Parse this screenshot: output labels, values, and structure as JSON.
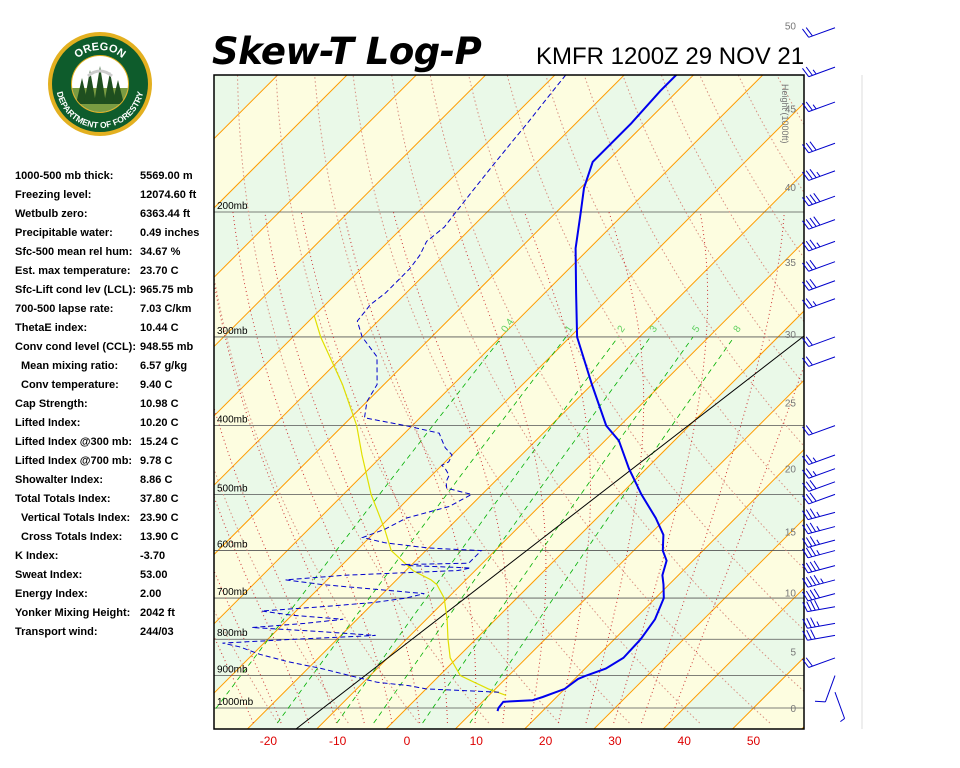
{
  "header": {
    "title": "Skew-T Log-P",
    "station_time": "KMFR 1200Z 29 NOV 21"
  },
  "logo": {
    "top_text": "OREGON",
    "bottom_text": "DEPARTMENT OF FORESTRY"
  },
  "indices": [
    {
      "label": "1000-500 mb thick:",
      "value": "5569.00 m"
    },
    {
      "label": "Freezing level:",
      "value": "12074.60 ft"
    },
    {
      "label": "Wetbulb zero:",
      "value": "6363.44 ft"
    },
    {
      "label": "Precipitable water:",
      "value": "0.49 inches"
    },
    {
      "label": "Sfc-500 mean rel hum:",
      "value": "34.67 %"
    },
    {
      "label": "Est. max temperature:",
      "value": "23.70 C"
    },
    {
      "label": "Sfc-Lift cond lev (LCL):",
      "value": "965.75 mb"
    },
    {
      "label": "700-500 lapse rate:",
      "value": "7.03 C/km"
    },
    {
      "label": "ThetaE index:",
      "value": "10.44 C"
    },
    {
      "label": "Conv cond level (CCL):",
      "value": "948.55 mb"
    },
    {
      "label": "Mean mixing ratio:",
      "value": "6.57 g/kg",
      "indent": true
    },
    {
      "label": "Conv temperature:",
      "value": "9.40 C",
      "indent": true
    },
    {
      "label": "Cap Strength:",
      "value": "10.98 C"
    },
    {
      "label": "Lifted Index:",
      "value": "10.20 C"
    },
    {
      "label": "Lifted Index @300 mb:",
      "value": "15.24 C"
    },
    {
      "label": "Lifted Index @700 mb:",
      "value": "9.78 C"
    },
    {
      "label": "Showalter Index:",
      "value": "8.86 C"
    },
    {
      "label": "Total Totals Index:",
      "value": "37.80 C"
    },
    {
      "label": "Vertical Totals Index:",
      "value": "23.90 C",
      "indent": true
    },
    {
      "label": "Cross Totals Index:",
      "value": "13.90 C",
      "indent": true
    },
    {
      "label": "K Index:",
      "value": "-3.70"
    },
    {
      "label": "Sweat Index:",
      "value": "53.00"
    },
    {
      "label": "Energy Index:",
      "value": "2.00"
    },
    {
      "label": "Yonker Mixing Height:",
      "value": "2042 ft"
    },
    {
      "label": "Transport wind:",
      "value": "244/03"
    }
  ],
  "chart_data": {
    "type": "skew-t",
    "title": "Skew-T Log-P",
    "subtitle": "KMFR 1200Z 29 NOV 21",
    "x_ticks": [
      -20,
      -10,
      0,
      10,
      20,
      30,
      40,
      50
    ],
    "x_range_c": [
      -29,
      56
    ],
    "pressure_levels": [
      {
        "p": 200,
        "label": "200mb"
      },
      {
        "p": 300,
        "label": "300mb"
      },
      {
        "p": 400,
        "label": "400mb"
      },
      {
        "p": 500,
        "label": "500mb"
      },
      {
        "p": 600,
        "label": "600mb"
      },
      {
        "p": 700,
        "label": "700mb"
      },
      {
        "p": 800,
        "label": "800mb"
      },
      {
        "p": 900,
        "label": "900mb"
      },
      {
        "p": 1000,
        "label": "1000mb"
      }
    ],
    "height_axis": {
      "label": "Height (1000ft)",
      "ticks": [
        0,
        5,
        10,
        15,
        20,
        25,
        30,
        35,
        40,
        45,
        50
      ]
    },
    "mixing_ratio_labels": [
      "0.4",
      "1",
      "2",
      "3",
      "5",
      "8"
    ],
    "temperature_profile": [
      [
        1010,
        13.5
      ],
      [
        1000,
        13.2
      ],
      [
        980,
        13.0
      ],
      [
        975,
        17.0
      ],
      [
        965,
        18.0
      ],
      [
        940,
        20.0
      ],
      [
        910,
        20.5
      ],
      [
        900,
        21.2
      ],
      [
        880,
        23.0
      ],
      [
        850,
        24.0
      ],
      [
        800,
        23.8
      ],
      [
        750,
        23.0
      ],
      [
        700,
        21.2
      ],
      [
        670,
        19.2
      ],
      [
        650,
        17.7
      ],
      [
        620,
        16.2
      ],
      [
        600,
        14.2
      ],
      [
        570,
        12.0
      ],
      [
        540,
        8.5
      ],
      [
        500,
        3.0
      ],
      [
        460,
        -2.5
      ],
      [
        420,
        -8.0
      ],
      [
        400,
        -12.0
      ],
      [
        350,
        -20.0
      ],
      [
        300,
        -29.0
      ],
      [
        260,
        -35.5
      ],
      [
        225,
        -42.0
      ],
      [
        200,
        -46.5
      ],
      [
        185,
        -49.5
      ],
      [
        170,
        -52.0
      ],
      [
        150,
        -52.0
      ],
      [
        135,
        -52.5
      ],
      [
        125,
        -52.5
      ],
      [
        115,
        -52.5
      ],
      [
        105,
        -53.0
      ],
      [
        100,
        -52.5
      ]
    ],
    "dewpoint_profile": [
      [
        950,
        11.0
      ],
      [
        940,
        0.0
      ],
      [
        930,
        -3.0
      ],
      [
        920,
        -8.0
      ],
      [
        900,
        -13.0
      ],
      [
        880,
        -18.0
      ],
      [
        860,
        -24.0
      ],
      [
        840,
        -29.0
      ],
      [
        820,
        -33.0
      ],
      [
        810,
        -36.0
      ],
      [
        800,
        -26.0
      ],
      [
        790,
        -15.0
      ],
      [
        780,
        -24.0
      ],
      [
        770,
        -34.0
      ],
      [
        760,
        -27.0
      ],
      [
        750,
        -22.0
      ],
      [
        740,
        -30.0
      ],
      [
        730,
        -35.0
      ],
      [
        720,
        -27.0
      ],
      [
        710,
        -20.0
      ],
      [
        700,
        -16.0
      ],
      [
        690,
        -14.0
      ],
      [
        680,
        -22.0
      ],
      [
        670,
        -30.0
      ],
      [
        660,
        -36.0
      ],
      [
        650,
        -28.0
      ],
      [
        640,
        -12.5
      ],
      [
        635,
        -11.0
      ],
      [
        630,
        -20.0
      ],
      [
        628,
        -21.5
      ],
      [
        625,
        -12.0
      ],
      [
        610,
        -12.0
      ],
      [
        600,
        -12.0
      ],
      [
        595,
        -20.0
      ],
      [
        585,
        -27.0
      ],
      [
        575,
        -31.0
      ],
      [
        560,
        -29.0
      ],
      [
        540,
        -27.5
      ],
      [
        520,
        -23.0
      ],
      [
        500,
        -21.5
      ],
      [
        490,
        -26.0
      ],
      [
        480,
        -27.0
      ],
      [
        470,
        -27.5
      ],
      [
        460,
        -29.0
      ],
      [
        455,
        -30.0
      ],
      [
        450,
        -29.5
      ],
      [
        440,
        -30.0
      ],
      [
        430,
        -32.0
      ],
      [
        420,
        -33.5
      ],
      [
        410,
        -35.0
      ],
      [
        400,
        -41.0
      ],
      [
        390,
        -48.0
      ],
      [
        370,
        -50.0
      ],
      [
        350,
        -51.0
      ],
      [
        320,
        -55.0
      ],
      [
        300,
        -60.0
      ],
      [
        285,
        -63.0
      ],
      [
        270,
        -63.5
      ],
      [
        260,
        -63.0
      ],
      [
        240,
        -63.0
      ],
      [
        230,
        -63.5
      ],
      [
        220,
        -64.5
      ],
      [
        210,
        -64.0
      ],
      [
        200,
        -64.5
      ],
      [
        190,
        -65.0
      ],
      [
        180,
        -65.5
      ],
      [
        170,
        -66.0
      ],
      [
        160,
        -66.5
      ],
      [
        150,
        -67.0
      ],
      [
        135,
        -68.0
      ],
      [
        120,
        -69.0
      ],
      [
        110,
        -70.0
      ],
      [
        100,
        -71.0
      ]
    ],
    "parcel_path": [
      [
        960,
        12.5
      ],
      [
        940,
        9.0
      ],
      [
        930,
        7.5
      ],
      [
        920,
        6.0
      ],
      [
        900,
        3.0
      ],
      [
        850,
        -1.0
      ],
      [
        800,
        -4.0
      ],
      [
        750,
        -7.0
      ],
      [
        700,
        -10.5
      ],
      [
        670,
        -13.5
      ],
      [
        660,
        -15.0
      ],
      [
        650,
        -17.0
      ],
      [
        640,
        -19.0
      ],
      [
        600,
        -25.0
      ],
      [
        560,
        -29.0
      ],
      [
        500,
        -36.0
      ],
      [
        440,
        -43.0
      ],
      [
        400,
        -48.0
      ],
      [
        350,
        -56.0
      ],
      [
        300,
        -66.0
      ],
      [
        280,
        -70.0
      ]
    ],
    "wind_barbs": [
      {
        "p": 110,
        "dir": 250,
        "spd": 20
      },
      {
        "p": 125,
        "dir": 250,
        "spd": 25
      },
      {
        "p": 140,
        "dir": 250,
        "spd": 25
      },
      {
        "p": 160,
        "dir": 250,
        "spd": 30
      },
      {
        "p": 175,
        "dir": 250,
        "spd": 35
      },
      {
        "p": 190,
        "dir": 250,
        "spd": 40
      },
      {
        "p": 205,
        "dir": 250,
        "spd": 40
      },
      {
        "p": 220,
        "dir": 250,
        "spd": 35
      },
      {
        "p": 235,
        "dir": 250,
        "spd": 30
      },
      {
        "p": 250,
        "dir": 250,
        "spd": 30
      },
      {
        "p": 265,
        "dir": 250,
        "spd": 25
      },
      {
        "p": 300,
        "dir": 250,
        "spd": 20
      },
      {
        "p": 320,
        "dir": 250,
        "spd": 20
      },
      {
        "p": 400,
        "dir": 250,
        "spd": 20
      },
      {
        "p": 440,
        "dir": 250,
        "spd": 25
      },
      {
        "p": 460,
        "dir": 250,
        "spd": 25
      },
      {
        "p": 480,
        "dir": 250,
        "spd": 30
      },
      {
        "p": 500,
        "dir": 250,
        "spd": 30
      },
      {
        "p": 530,
        "dir": 255,
        "spd": 35
      },
      {
        "p": 555,
        "dir": 255,
        "spd": 35
      },
      {
        "p": 580,
        "dir": 255,
        "spd": 35
      },
      {
        "p": 600,
        "dir": 255,
        "spd": 35
      },
      {
        "p": 630,
        "dir": 255,
        "spd": 40
      },
      {
        "p": 660,
        "dir": 255,
        "spd": 45
      },
      {
        "p": 690,
        "dir": 255,
        "spd": 40
      },
      {
        "p": 720,
        "dir": 260,
        "spd": 40
      },
      {
        "p": 760,
        "dir": 260,
        "spd": 35
      },
      {
        "p": 790,
        "dir": 260,
        "spd": 30
      },
      {
        "p": 850,
        "dir": 250,
        "spd": 20
      },
      {
        "p": 900,
        "dir": 200,
        "spd": 10
      },
      {
        "p": 950,
        "dir": 160,
        "spd": 5
      }
    ]
  },
  "colors": {
    "background_band_1": "#eaf9e8",
    "background_band_2": "#fdfde0",
    "dry_adiabat": "#ff9c00",
    "moist_adiabat": "#d89080",
    "isotherm": "#e08080",
    "mixing_ratio": "#00b000",
    "mixing_ratio_label": "#5fcf5f",
    "temperature": "#0000ee",
    "dewpoint": "#0000cc",
    "parcel": "#e0e000",
    "x_tick_label": "#dd0000",
    "logo_ring": "#0e5c2c",
    "logo_ring_outer": "#e3b020"
  }
}
